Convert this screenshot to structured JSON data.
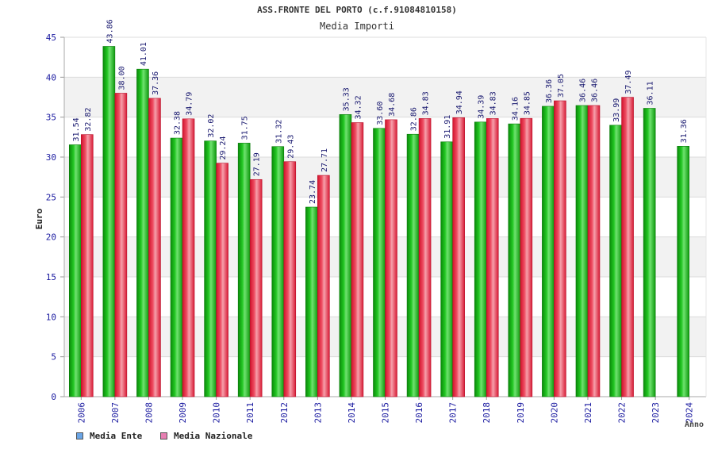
{
  "chart_data": {
    "type": "bar",
    "title": "ASS.FRONTE DEL PORTO (c.f.91084810158)",
    "subtitle": "Media Importi",
    "xlabel": "Anno",
    "ylabel": "Euro",
    "ylim": [
      0,
      45
    ],
    "yticks": [
      "0",
      "5",
      "10",
      "15",
      "20",
      "25",
      "30",
      "35",
      "40",
      "45"
    ],
    "categories": [
      "2006",
      "2007",
      "2008",
      "2009",
      "2010",
      "2011",
      "2012",
      "2013",
      "2014",
      "2015",
      "2016",
      "2017",
      "2018",
      "2019",
      "2020",
      "2021",
      "2022",
      "2023",
      "2024"
    ],
    "series": [
      {
        "name": "Media Ente",
        "color": "#19b219",
        "values": [
          31.54,
          43.86,
          41.01,
          32.38,
          32.02,
          31.75,
          31.32,
          23.74,
          35.33,
          33.6,
          32.86,
          31.91,
          34.39,
          34.16,
          36.36,
          36.46,
          33.99,
          36.11,
          31.36
        ],
        "labels": [
          "31.54",
          "43.86",
          "41.01",
          "32.38",
          "32.02",
          "31.75",
          "31.32",
          "23.74",
          "35.33",
          "33.60",
          "32.86",
          "31.91",
          "34.39",
          "34.16",
          "36.36",
          "36.46",
          "33.99",
          "36.11",
          "31.36"
        ]
      },
      {
        "name": "Media Nazionale",
        "color": "#e8304a",
        "values": [
          32.82,
          38.0,
          37.36,
          34.79,
          29.24,
          27.19,
          29.43,
          27.71,
          34.32,
          34.68,
          34.83,
          34.94,
          34.83,
          34.85,
          37.05,
          36.46,
          37.49,
          null,
          null
        ],
        "labels": [
          "32.82",
          "38.00",
          "37.36",
          "34.79",
          "29.24",
          "27.19",
          "29.43",
          "27.71",
          "34.32",
          "34.68",
          "34.83",
          "34.94",
          "34.83",
          "34.85",
          "37.05",
          "36.46",
          "37.49",
          null,
          null
        ]
      }
    ],
    "legend": [
      {
        "label": "Media Ente",
        "color": "#6aa5e6"
      },
      {
        "label": "Media Nazionale",
        "color": "#e77fb2"
      }
    ],
    "legend_position": "bottom-left",
    "grid": true
  }
}
